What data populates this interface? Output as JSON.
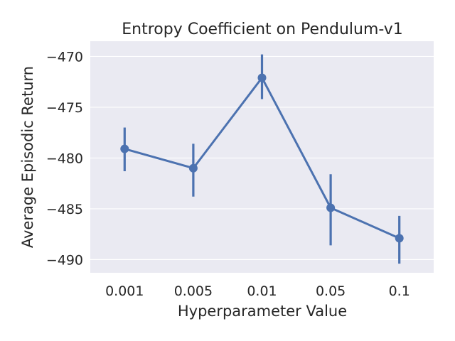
{
  "chart_data": {
    "type": "line",
    "title": "Entropy Coefficient on Pendulum-v1",
    "xlabel": "Hyperparameter Value",
    "ylabel": "Average Episodic Return",
    "categories": [
      "0.001",
      "0.005",
      "0.01",
      "0.05",
      "0.1"
    ],
    "series": [
      {
        "values": [
          -479.1,
          -481.0,
          -472.1,
          -484.9,
          -487.9
        ],
        "ci_low": [
          -481.3,
          -483.8,
          -474.2,
          -488.6,
          -490.4
        ],
        "ci_high": [
          -477.0,
          -478.6,
          -469.8,
          -481.6,
          -485.7
        ],
        "color": "#4c72b0"
      }
    ],
    "ylim": [
      -491.3,
      -468.5
    ],
    "yticks": [
      -470,
      -475,
      -480,
      -485,
      -490
    ],
    "ytick_labels": [
      "−470",
      "−475",
      "−480",
      "−485",
      "−490"
    ],
    "grid": true,
    "background": "#eaeaf2"
  }
}
